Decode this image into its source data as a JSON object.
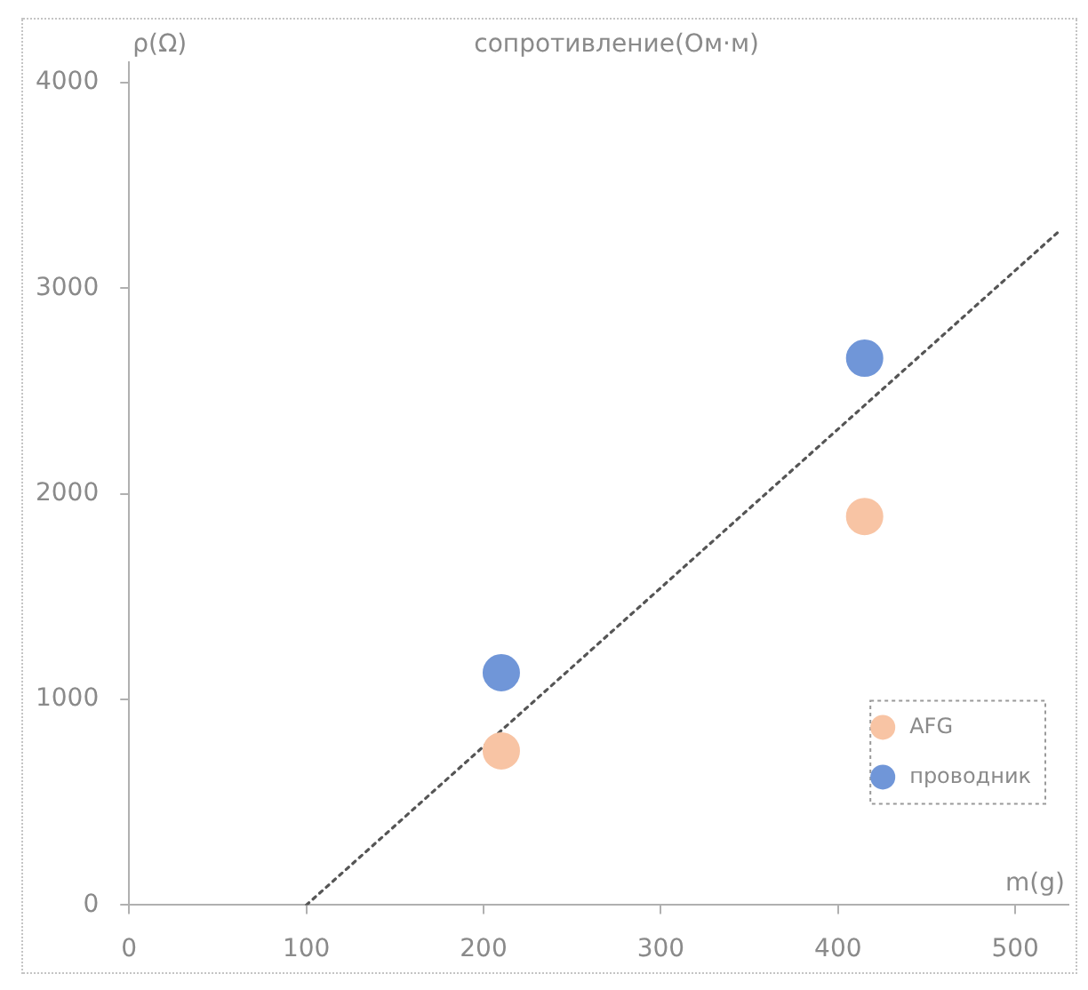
{
  "chart_data": {
    "type": "scatter",
    "title": "сопротивление(Ом·м)",
    "xlabel": "m(g)",
    "ylabel": "ρ(Ω)",
    "series": [
      {
        "name": "AFG",
        "color": "#f8c4a4",
        "x": [
          210,
          415
        ],
        "values": [
          750,
          1890
        ]
      },
      {
        "name": "проводник",
        "color": "#7096d8",
        "x": [
          210,
          415
        ],
        "values": [
          1130,
          2660
        ]
      },
      {
        "type": "line",
        "color": "#555555",
        "x": [
          100,
          525
        ],
        "values": [
          0,
          3280
        ],
        "line_style": "dotted",
        "marker": "none"
      }
    ],
    "xlim": [
      0,
      530
    ],
    "xticks": [
      0,
      100,
      200,
      300,
      400,
      500
    ],
    "ylim": [
      0,
      4100
    ],
    "yticks": [
      0,
      1000,
      2000,
      3000,
      4000
    ],
    "grid": false,
    "legend": "bottom right",
    "marker": "circle"
  }
}
